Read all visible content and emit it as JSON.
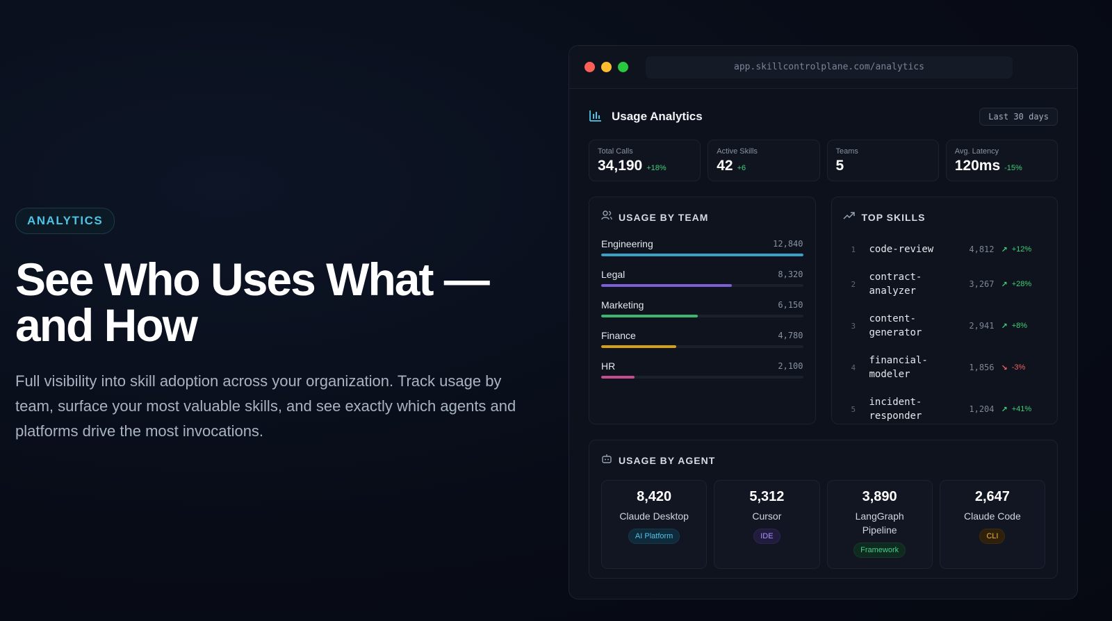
{
  "hero": {
    "badge": "ANALYTICS",
    "title": "See Who Uses What — and How",
    "description": "Full visibility into skill adoption across your organization. Track usage by team, surface your most valuable skills, and see exactly which agents and platforms drive the most invocations."
  },
  "browser": {
    "url": "app.skillcontrolplane.com/analytics"
  },
  "dashboard": {
    "title": "Usage Analytics",
    "range": "Last 30 days",
    "stats": [
      {
        "label": "Total Calls",
        "value": "34,190",
        "delta": "+18%"
      },
      {
        "label": "Active Skills",
        "value": "42",
        "delta": "+6"
      },
      {
        "label": "Teams",
        "value": "5",
        "delta": ""
      },
      {
        "label": "Avg. Latency",
        "value": "120ms",
        "delta": "-15%"
      }
    ],
    "team_panel": {
      "title": "USAGE BY TEAM",
      "teams": [
        {
          "name": "Engineering",
          "value": "12,840",
          "fraction": 1.0,
          "color": "#3aa0c8"
        },
        {
          "name": "Legal",
          "value": "8,320",
          "fraction": 0.648,
          "color": "#7b5fd6"
        },
        {
          "name": "Marketing",
          "value": "6,150",
          "fraction": 0.479,
          "color": "#3bb56f"
        },
        {
          "name": "Finance",
          "value": "4,780",
          "fraction": 0.372,
          "color": "#d4a016"
        },
        {
          "name": "HR",
          "value": "2,100",
          "fraction": 0.164,
          "color": "#c24e8e"
        }
      ]
    },
    "skills_panel": {
      "title": "TOP SKILLS",
      "skills": [
        {
          "rank": "1",
          "name": "code-review",
          "count": "4,812",
          "trend": "+12%",
          "direction": "up"
        },
        {
          "rank": "2",
          "name": "contract-analyzer",
          "count": "3,267",
          "trend": "+28%",
          "direction": "up"
        },
        {
          "rank": "3",
          "name": "content-generator",
          "count": "2,941",
          "trend": "+8%",
          "direction": "up"
        },
        {
          "rank": "4",
          "name": "financial-modeler",
          "count": "1,856",
          "trend": "-3%",
          "direction": "down"
        },
        {
          "rank": "5",
          "name": "incident-responder",
          "count": "1,204",
          "trend": "+41%",
          "direction": "up"
        }
      ]
    },
    "agents_panel": {
      "title": "USAGE BY AGENT",
      "agents": [
        {
          "count": "8,420",
          "name": "Claude Desktop",
          "tag": "AI Platform",
          "tag_color": "blue"
        },
        {
          "count": "5,312",
          "name": "Cursor",
          "tag": "IDE",
          "tag_color": "purple"
        },
        {
          "count": "3,890",
          "name": "LangGraph Pipeline",
          "tag": "Framework",
          "tag_color": "green"
        },
        {
          "count": "2,647",
          "name": "Claude Code",
          "tag": "CLI",
          "tag_color": "orange"
        }
      ]
    }
  }
}
